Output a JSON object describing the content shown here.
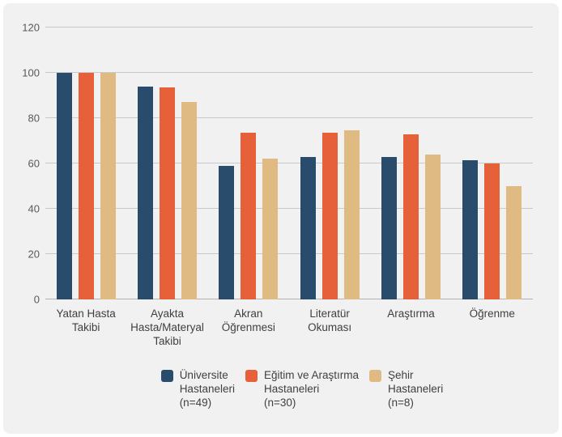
{
  "page": {
    "background": "#FFFFFF",
    "card_background": "#F1F1F2"
  },
  "chart_data": {
    "type": "bar",
    "title": "",
    "xlabel": "",
    "ylabel": "",
    "ylim": [
      0,
      120
    ],
    "yticks": [
      0,
      20,
      40,
      60,
      80,
      100,
      120
    ],
    "grid": true,
    "legend_position": "bottom",
    "categories": [
      "Yatan Hasta Takibi",
      "Ayakta Hasta/Materyal Takibi",
      "Akran Öğrenmesi",
      "Literatür Okuması",
      "Araştırma",
      "Öğrenme"
    ],
    "category_label_lines": [
      [
        "Yatan Hasta",
        "Takibi"
      ],
      [
        "Ayakta",
        "Hasta/Materyal",
        "Takibi"
      ],
      [
        "Akran",
        "Öğrenmesi"
      ],
      [
        "Literatür",
        "Okuması"
      ],
      [
        "Araştırma"
      ],
      [
        "Öğrenme"
      ]
    ],
    "series": [
      {
        "key": "universite-hastaneleri",
        "name": "Üniversite Hastaneleri (n=49)",
        "legend_lines": [
          "Üniversite",
          "Hastaneleri",
          "(n=49)"
        ],
        "color": "#294C6D",
        "values": [
          100,
          94,
          59,
          63,
          63,
          61.5
        ]
      },
      {
        "key": "egitim-ve-arastirma-hastaneleri",
        "name": "Eğitim ve Araştırma Hastaneleri (n=30)",
        "legend_lines": [
          "Eğitim ve Araştırma",
          "Hastaneleri",
          "(n=30)"
        ],
        "color": "#E6613A",
        "values": [
          100,
          93.5,
          73.5,
          73.5,
          73,
          60
        ]
      },
      {
        "key": "sehir-hastaneleri",
        "name": "Şehir Hastaneleri (n=8)",
        "legend_lines": [
          "Şehir",
          "Hastaneleri",
          "(n=8)"
        ],
        "color": "#DFBA83",
        "values": [
          100,
          87,
          62,
          74.5,
          64,
          50
        ]
      }
    ],
    "style_colors": {
      "gridline": "#C9C9C9",
      "axis_line": "#B3B3B3",
      "tick_label": "#595959",
      "category_label": "#3F3F3F",
      "legend_label": "#3F3F3F"
    }
  }
}
